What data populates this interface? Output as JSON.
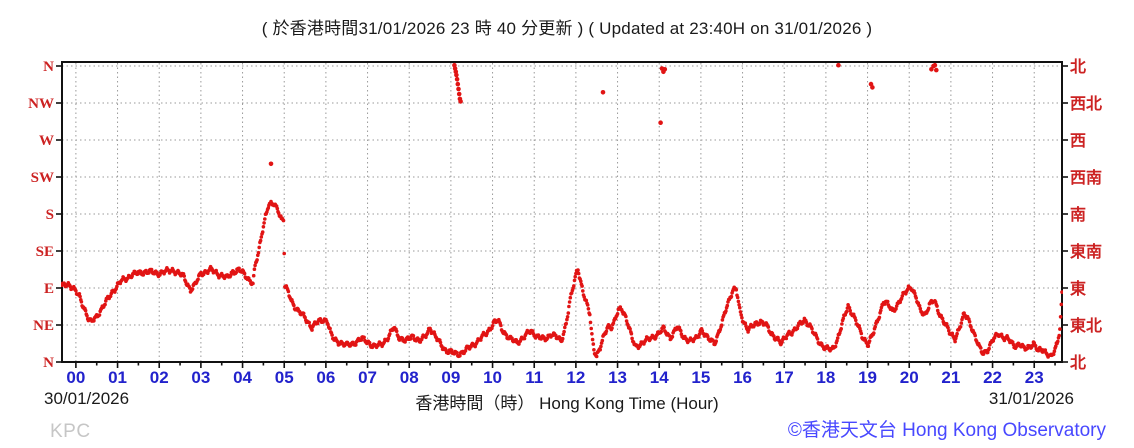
{
  "title": "( 於香港時間31/01/2026 23 時 40 分更新 ) ( Updated at 23:40H on 31/01/2026 )",
  "footer": {
    "station_code": "KPC",
    "copyright": "©香港天文台 Hong Kong Observatory"
  },
  "colors": {
    "dots": "#e11414",
    "axis_labels_red": "#cc2222",
    "hour_labels_blue": "#2222cc",
    "copyright_blue": "#4848ff",
    "station_gray": "#c6c6c6",
    "grid": "#9a9a9a",
    "frame": "#111111"
  },
  "chart_data": {
    "type": "scatter",
    "title": "( 於香港時間31/01/2026 23 時 40 分更新 ) ( Updated at 23:40H on 31/01/2026 )",
    "description": "1-minute mean wind direction over the 24 hours ending 31/01/2026 23:40",
    "grid": true,
    "legend": false,
    "x_axis": {
      "label": "香港時間（時） Hong Kong Time (Hour)",
      "date_left": "30/01/2026",
      "date_right": "31/01/2026",
      "start_time": "30/01/2026 23:40",
      "end_time": "31/01/2026 23:40",
      "minutes_range": [
        0,
        1440
      ],
      "hour_labels": [
        "00",
        "01",
        "02",
        "03",
        "04",
        "05",
        "06",
        "07",
        "08",
        "09",
        "10",
        "11",
        "12",
        "13",
        "14",
        "15",
        "16",
        "17",
        "18",
        "19",
        "20",
        "21",
        "22",
        "23"
      ]
    },
    "y_axis": {
      "unit": "wind direction (degrees, 0 = N bottom, 360 = N top)",
      "range_degrees": [
        0,
        360
      ],
      "tick_degrees": [
        0,
        45,
        90,
        135,
        180,
        225,
        270,
        315,
        360
      ],
      "left_labels_bottom_to_top": [
        "N",
        "NE",
        "E",
        "SE",
        "S",
        "SW",
        "W",
        "NW",
        "N"
      ],
      "right_labels_bottom_to_top": [
        "北",
        "東北",
        "東",
        "東南",
        "南",
        "西南",
        "西",
        "西北",
        "北"
      ]
    },
    "series": [
      {
        "name": "wind-direction-trend-breakpoints",
        "color": "#e11414",
        "points_t_deg": [
          [
            0,
            92
          ],
          [
            8,
            96
          ],
          [
            15,
            90
          ],
          [
            25,
            80
          ],
          [
            32,
            66
          ],
          [
            38,
            52
          ],
          [
            42,
            48
          ],
          [
            50,
            56
          ],
          [
            60,
            68
          ],
          [
            72,
            85
          ],
          [
            85,
            98
          ],
          [
            100,
            106
          ],
          [
            120,
            110
          ],
          [
            140,
            108
          ],
          [
            160,
            112
          ],
          [
            175,
            104
          ],
          [
            185,
            88
          ],
          [
            192,
            94
          ],
          [
            200,
            108
          ],
          [
            215,
            112
          ],
          [
            228,
            106
          ],
          [
            238,
            102
          ],
          [
            246,
            110
          ],
          [
            255,
            112
          ],
          [
            262,
            107
          ],
          [
            270,
            100
          ],
          [
            275,
            96
          ],
          [
            278,
            116
          ],
          [
            283,
            132
          ],
          [
            288,
            158
          ],
          [
            293,
            178
          ],
          [
            297,
            190
          ],
          [
            305,
            192
          ],
          [
            311,
            186
          ],
          [
            316,
            174
          ],
          [
            319,
            172
          ],
          [
            321,
            92
          ],
          [
            326,
            84
          ],
          [
            332,
            72
          ],
          [
            340,
            62
          ],
          [
            350,
            54
          ],
          [
            360,
            42
          ],
          [
            368,
            48
          ],
          [
            376,
            52
          ],
          [
            382,
            50
          ],
          [
            387,
            34
          ],
          [
            392,
            27
          ],
          [
            400,
            24
          ],
          [
            410,
            20
          ],
          [
            420,
            23
          ],
          [
            432,
            28
          ],
          [
            440,
            25
          ],
          [
            450,
            18
          ],
          [
            460,
            22
          ],
          [
            470,
            30
          ],
          [
            478,
            42
          ],
          [
            486,
            30
          ],
          [
            495,
            25
          ],
          [
            505,
            32
          ],
          [
            515,
            25
          ],
          [
            522,
            30
          ],
          [
            530,
            42
          ],
          [
            538,
            30
          ],
          [
            546,
            21
          ],
          [
            553,
            14
          ],
          [
            562,
            11
          ],
          [
            572,
            10
          ],
          [
            580,
            13
          ],
          [
            590,
            20
          ],
          [
            600,
            26
          ],
          [
            612,
            36
          ],
          [
            622,
            48
          ],
          [
            628,
            50
          ],
          [
            635,
            38
          ],
          [
            645,
            28
          ],
          [
            655,
            24
          ],
          [
            665,
            30
          ],
          [
            675,
            38
          ],
          [
            685,
            31
          ],
          [
            695,
            27
          ],
          [
            705,
            35
          ],
          [
            712,
            30
          ],
          [
            719,
            25
          ],
          [
            726,
            48
          ],
          [
            731,
            72
          ],
          [
            736,
            90
          ],
          [
            740,
            106
          ],
          [
            743,
            114
          ],
          [
            747,
            98
          ],
          [
            752,
            80
          ],
          [
            757,
            66
          ],
          [
            760,
            58
          ],
          [
            763,
            32
          ],
          [
            766,
            16
          ],
          [
            770,
            8
          ],
          [
            775,
            17
          ],
          [
            780,
            30
          ],
          [
            786,
            44
          ],
          [
            791,
            43
          ],
          [
            796,
            50
          ],
          [
            801,
            62
          ],
          [
            806,
            65
          ],
          [
            811,
            57
          ],
          [
            816,
            44
          ],
          [
            821,
            28
          ],
          [
            826,
            18
          ],
          [
            836,
            24
          ],
          [
            846,
            28
          ],
          [
            856,
            33
          ],
          [
            866,
            40
          ],
          [
            876,
            30
          ],
          [
            886,
            42
          ],
          [
            896,
            30
          ],
          [
            906,
            25
          ],
          [
            914,
            29
          ],
          [
            920,
            40
          ],
          [
            930,
            28
          ],
          [
            940,
            24
          ],
          [
            950,
            45
          ],
          [
            958,
            70
          ],
          [
            966,
            88
          ],
          [
            971,
            88
          ],
          [
            976,
            62
          ],
          [
            981,
            50
          ],
          [
            988,
            40
          ],
          [
            996,
            44
          ],
          [
            1006,
            50
          ],
          [
            1013,
            46
          ],
          [
            1021,
            34
          ],
          [
            1030,
            29
          ],
          [
            1036,
            22
          ],
          [
            1046,
            35
          ],
          [
            1056,
            39
          ],
          [
            1063,
            46
          ],
          [
            1069,
            52
          ],
          [
            1076,
            45
          ],
          [
            1083,
            34
          ],
          [
            1091,
            24
          ],
          [
            1100,
            16
          ],
          [
            1109,
            15
          ],
          [
            1116,
            26
          ],
          [
            1122,
            42
          ],
          [
            1127,
            56
          ],
          [
            1132,
            68
          ],
          [
            1139,
            58
          ],
          [
            1146,
            44
          ],
          [
            1153,
            30
          ],
          [
            1161,
            22
          ],
          [
            1169,
            36
          ],
          [
            1176,
            55
          ],
          [
            1183,
            74
          ],
          [
            1189,
            70
          ],
          [
            1196,
            62
          ],
          [
            1203,
            70
          ],
          [
            1211,
            80
          ],
          [
            1219,
            90
          ],
          [
            1223,
            92
          ],
          [
            1229,
            80
          ],
          [
            1236,
            62
          ],
          [
            1243,
            58
          ],
          [
            1249,
            70
          ],
          [
            1256,
            74
          ],
          [
            1263,
            60
          ],
          [
            1271,
            48
          ],
          [
            1279,
            34
          ],
          [
            1286,
            29
          ],
          [
            1293,
            43
          ],
          [
            1299,
            57
          ],
          [
            1304,
            54
          ],
          [
            1309,
            45
          ],
          [
            1316,
            28
          ],
          [
            1321,
            17
          ],
          [
            1326,
            11
          ],
          [
            1333,
            15
          ],
          [
            1341,
            27
          ],
          [
            1349,
            35
          ],
          [
            1356,
            30
          ],
          [
            1363,
            27
          ],
          [
            1371,
            20
          ],
          [
            1379,
            22
          ],
          [
            1386,
            15
          ],
          [
            1393,
            19
          ],
          [
            1399,
            23
          ],
          [
            1406,
            13
          ],
          [
            1413,
            15
          ],
          [
            1419,
            11
          ],
          [
            1424,
            6
          ],
          [
            1429,
            12
          ],
          [
            1433,
            22
          ],
          [
            1437,
            40
          ],
          [
            1440,
            85
          ]
        ]
      }
    ],
    "outliers_t_deg": [
      [
        301,
        241
      ],
      [
        565,
        361
      ],
      [
        566,
        357
      ],
      [
        567,
        353
      ],
      [
        568,
        349
      ],
      [
        569,
        344
      ],
      [
        570,
        338
      ],
      [
        571,
        332
      ],
      [
        572,
        326
      ],
      [
        573,
        320
      ],
      [
        574,
        317
      ],
      [
        779,
        328
      ],
      [
        862,
        291
      ],
      [
        864,
        357
      ],
      [
        866,
        353
      ],
      [
        868,
        356
      ],
      [
        1118,
        361
      ],
      [
        1165,
        338
      ],
      [
        1167,
        334
      ],
      [
        1252,
        356
      ],
      [
        1255,
        360
      ],
      [
        1257,
        361
      ],
      [
        1259,
        355
      ]
    ]
  }
}
